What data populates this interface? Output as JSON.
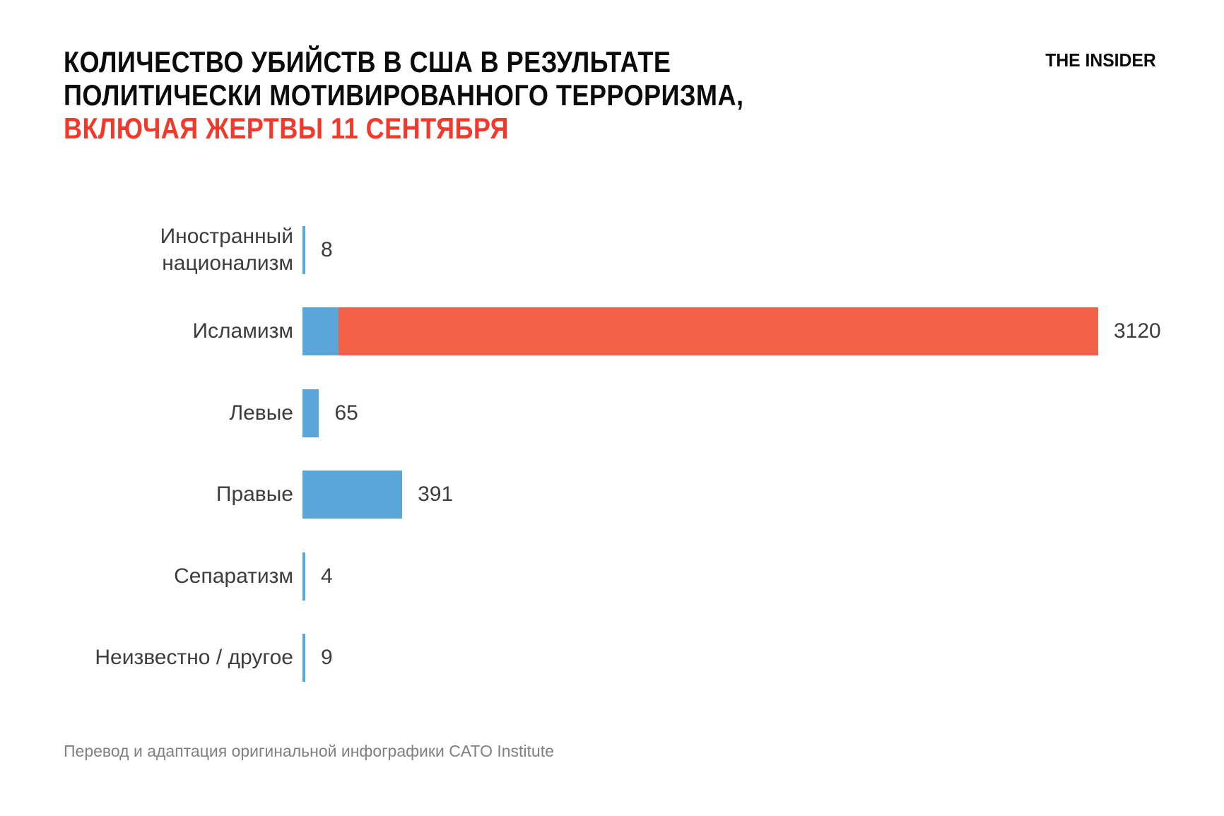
{
  "header": {
    "title_line1": "КОЛИЧЕСТВО УБИЙСТВ В США В РЕЗУЛЬТАТЕ",
    "title_line2": "ПОЛИТИЧЕСКИ МОТИВИРОВАННОГО ТЕРРОРИЗМА,",
    "title_line3": "ВКЛЮЧАЯ ЖЕРТВЫ 11 СЕНТЯБРЯ",
    "logo": "THE INSIDER"
  },
  "footer": {
    "credit": "Перевод и адаптация оригинальной инфографики CATO Institute"
  },
  "colors": {
    "accent_red": "#f2392c",
    "bar_red": "#f4614b",
    "bar_blue": "#5aa6d8",
    "label": "#3d3d3d",
    "footer_gray": "#808080"
  },
  "chart_data": {
    "type": "bar",
    "orientation": "horizontal",
    "title": "Количество убийств в США в результате политически мотивированного терроризма, включая жертвы 11 сентября",
    "categories": [
      "Иностранный национализм",
      "Исламизм",
      "Левые",
      "Правые",
      "Сепаратизм",
      "Неизвестно / другое"
    ],
    "values": [
      8,
      3120,
      65,
      391,
      4,
      9
    ],
    "xlim": [
      0,
      3120
    ],
    "grid": false,
    "legend_position": "none",
    "value_labels_shown": true,
    "highlight_note": "красный сегмент соответствует выделенной красным строке заголовка — жертвы 11 сентября (разбиение сегментов оценено по пикселям)",
    "bars": [
      {
        "label": "Иностранный национализм",
        "value": 8,
        "display": "8",
        "segments": [
          {
            "value": 8,
            "color": "#5aa6d8"
          }
        ]
      },
      {
        "label": "Исламизм",
        "value": 3120,
        "display": "3120",
        "segments": [
          {
            "value": 140,
            "color": "#5aa6d8"
          },
          {
            "value": 2980,
            "color": "#f4614b"
          }
        ]
      },
      {
        "label": "Левые",
        "value": 65,
        "display": "65",
        "segments": [
          {
            "value": 65,
            "color": "#5aa6d8"
          }
        ]
      },
      {
        "label": "Правые",
        "value": 391,
        "display": "391",
        "segments": [
          {
            "value": 391,
            "color": "#5aa6d8"
          }
        ]
      },
      {
        "label": "Сепаратизм",
        "value": 4,
        "display": "4",
        "segments": [
          {
            "value": 4,
            "color": "#5aa6d8"
          }
        ]
      },
      {
        "label": "Неизвестно / другое",
        "value": 9,
        "display": "9",
        "segments": [
          {
            "value": 9,
            "color": "#5aa6d8"
          }
        ]
      }
    ]
  }
}
